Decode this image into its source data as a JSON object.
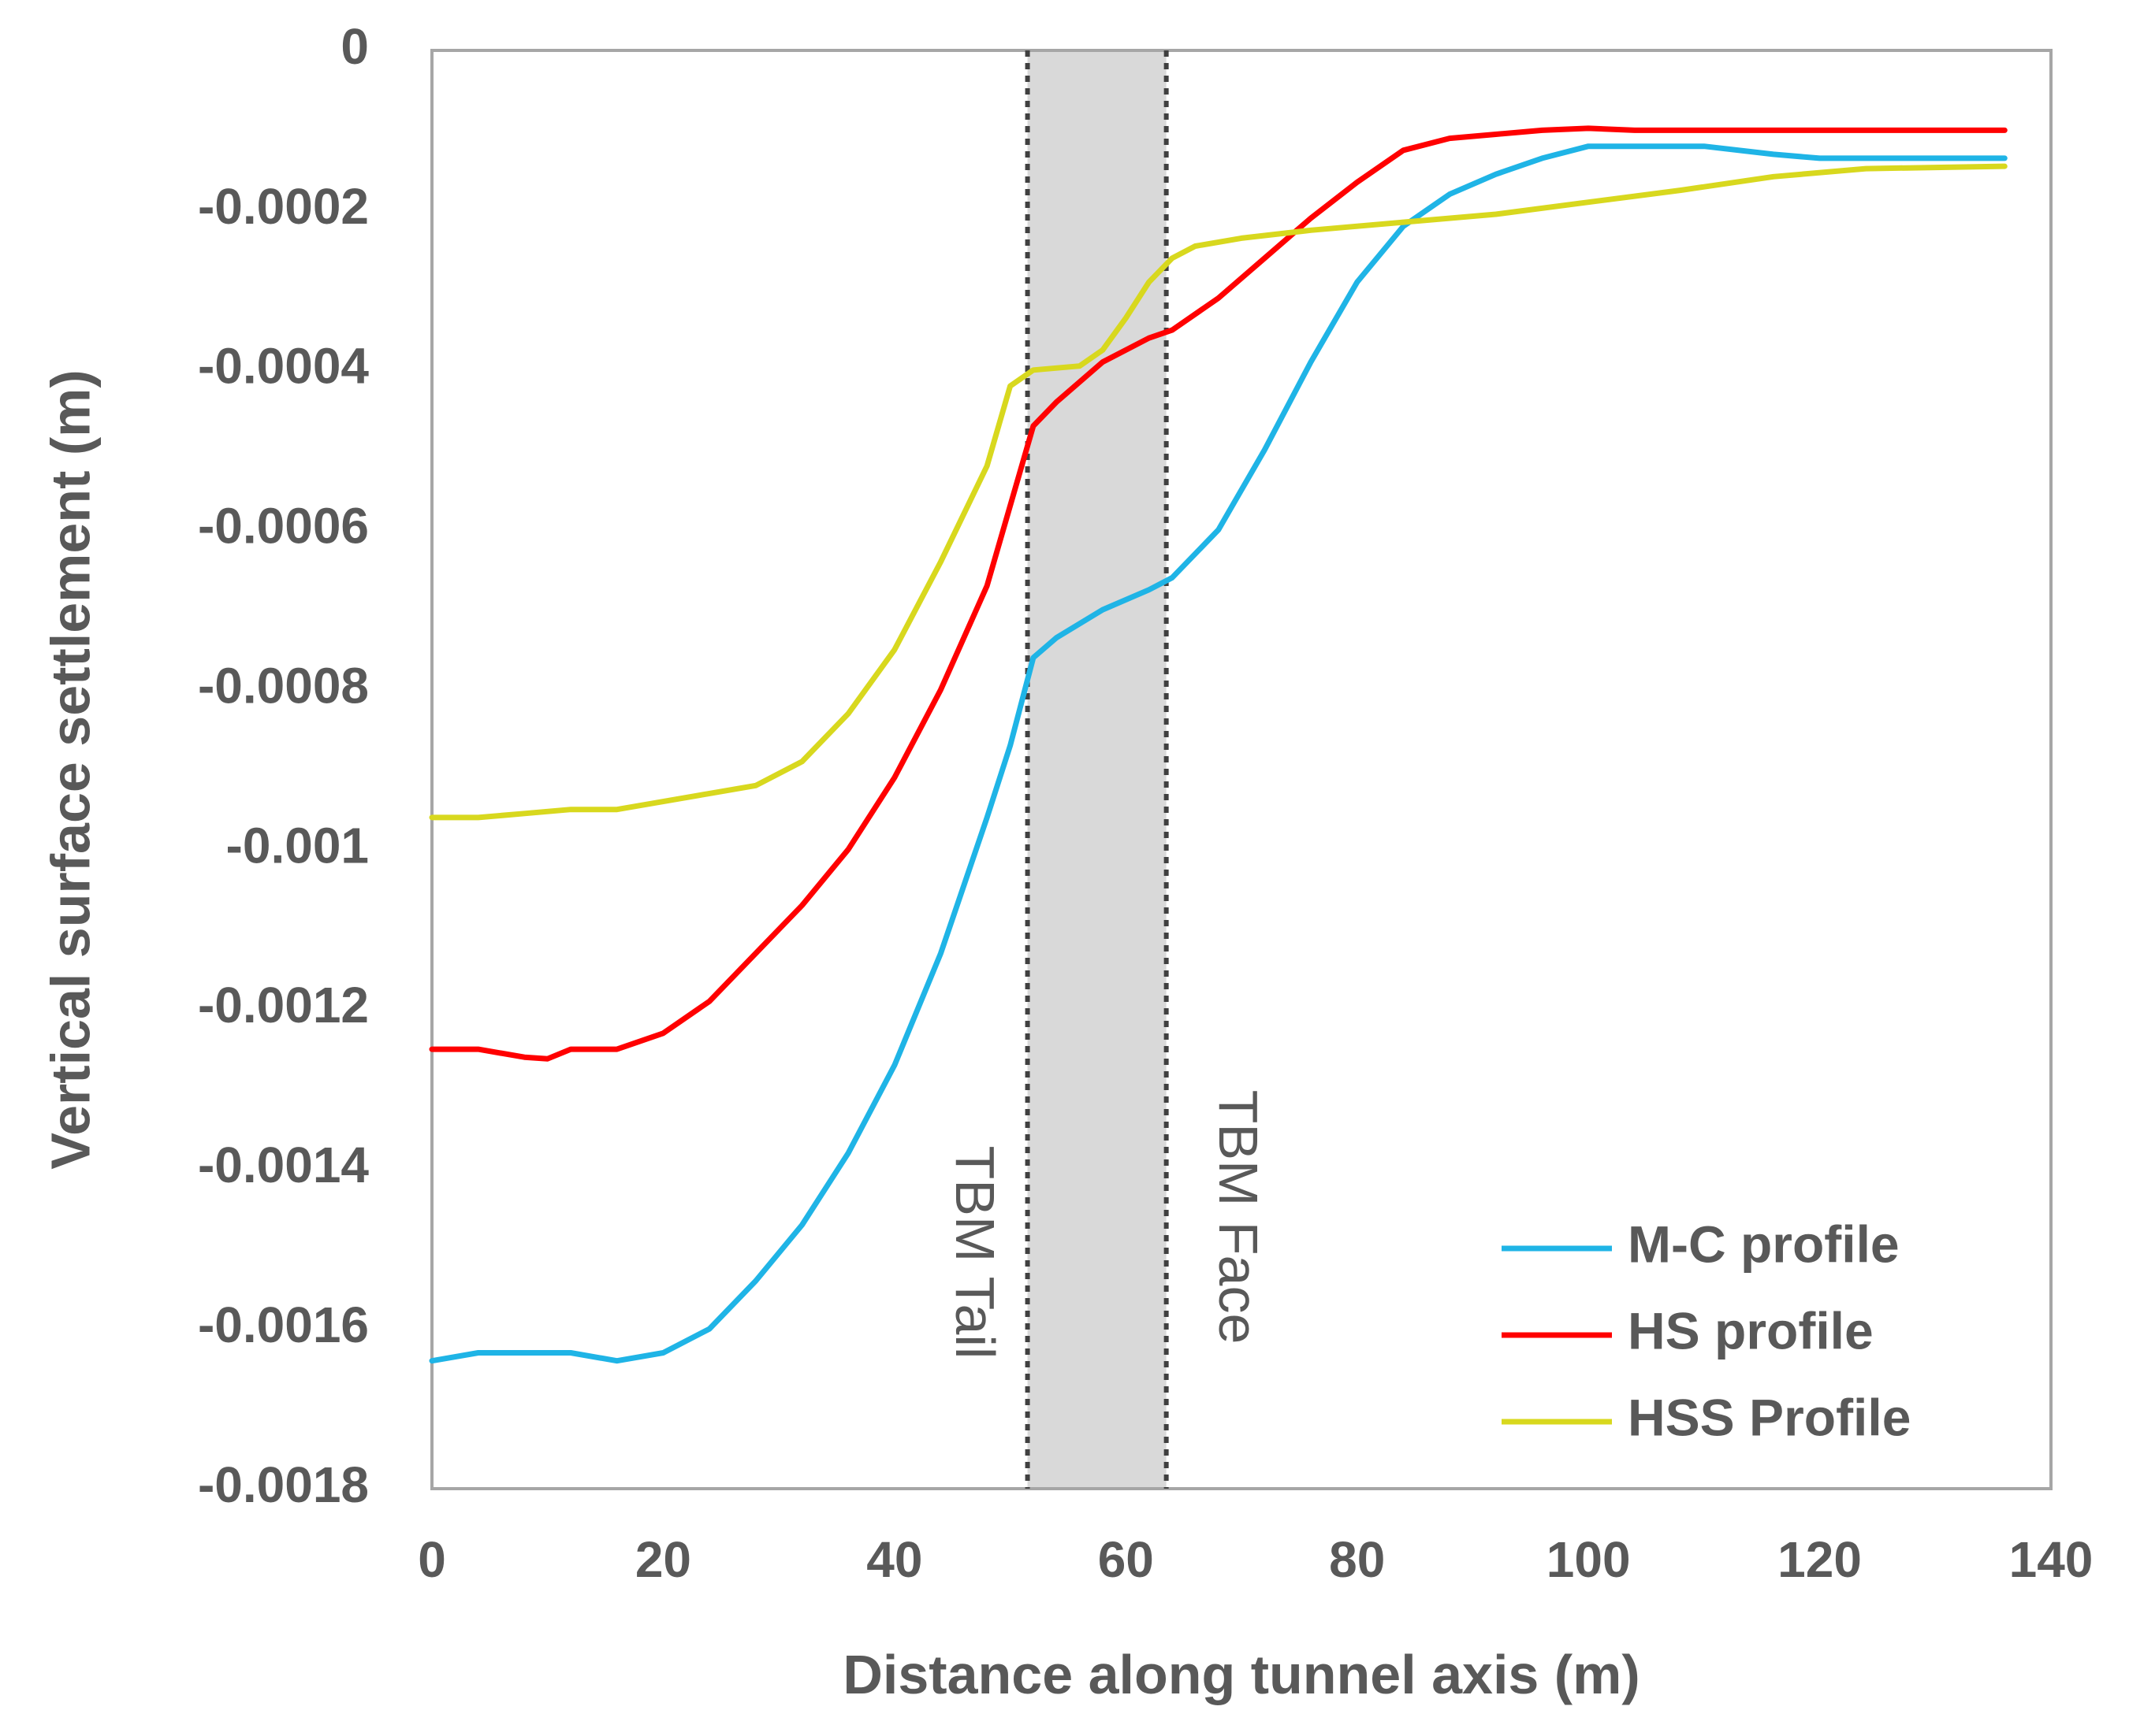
{
  "chart_data": {
    "type": "line",
    "title": "",
    "xlabel": "Distance along tunnel axis (m)",
    "ylabel": "Vertical surface settlement (m)",
    "xlim": [
      0,
      140
    ],
    "ylim": [
      -0.0018,
      0
    ],
    "x_ticks": [
      0,
      20,
      40,
      60,
      80,
      100,
      120,
      140
    ],
    "x_tick_labels": [
      "0",
      "20",
      "40",
      "60",
      "80",
      "100",
      "120",
      "140"
    ],
    "y_ticks": [
      0,
      -0.0002,
      -0.0004,
      -0.0006,
      -0.0008,
      -0.001,
      -0.0012,
      -0.0014,
      -0.0016,
      -0.0018
    ],
    "y_tick_labels": [
      "0",
      "-0.0002",
      "-0.0004",
      "-0.0006",
      "-0.0008",
      "-0.001",
      "-0.0012",
      "-0.0014",
      "-0.0016",
      "-0.0018"
    ],
    "grid": false,
    "legend_position": "bottom-right",
    "shaded_region": {
      "x": [
        51.5,
        63.5
      ],
      "color": "#d9d9d9"
    },
    "markers": [
      {
        "label": "TBM Tail",
        "x": 51.5
      },
      {
        "label": "TBM Face",
        "x": 63.5
      }
    ],
    "series": [
      {
        "name": "M-C profile",
        "color": "#1fb4e6",
        "points": [
          [
            0,
            -0.00164
          ],
          [
            4,
            -0.00163
          ],
          [
            8,
            -0.00163
          ],
          [
            12,
            -0.00163
          ],
          [
            16,
            -0.00164
          ],
          [
            20,
            -0.00163
          ],
          [
            24,
            -0.0016
          ],
          [
            28,
            -0.00154
          ],
          [
            32,
            -0.00147
          ],
          [
            36,
            -0.00138
          ],
          [
            40,
            -0.00127
          ],
          [
            44,
            -0.00113
          ],
          [
            48,
            -0.00096
          ],
          [
            50,
            -0.00087
          ],
          [
            52,
            -0.00076
          ],
          [
            54,
            -0.000735
          ],
          [
            58,
            -0.0007
          ],
          [
            62,
            -0.000675
          ],
          [
            64,
            -0.00066
          ],
          [
            68,
            -0.0006
          ],
          [
            72,
            -0.0005
          ],
          [
            76,
            -0.00039
          ],
          [
            80,
            -0.00029
          ],
          [
            84,
            -0.00022
          ],
          [
            88,
            -0.00018
          ],
          [
            92,
            -0.000155
          ],
          [
            96,
            -0.000135
          ],
          [
            100,
            -0.00012
          ],
          [
            104,
            -0.00012
          ],
          [
            110,
            -0.00012
          ],
          [
            116,
            -0.00013
          ],
          [
            120,
            -0.000135
          ],
          [
            128,
            -0.000135
          ],
          [
            136,
            -0.000135
          ]
        ]
      },
      {
        "name": "HS profile",
        "color": "#ff0000",
        "points": [
          [
            0,
            -0.00125
          ],
          [
            4,
            -0.00125
          ],
          [
            8,
            -0.00126
          ],
          [
            10,
            -0.001262
          ],
          [
            12,
            -0.00125
          ],
          [
            16,
            -0.00125
          ],
          [
            20,
            -0.00123
          ],
          [
            24,
            -0.00119
          ],
          [
            28,
            -0.00113
          ],
          [
            32,
            -0.00107
          ],
          [
            36,
            -0.001
          ],
          [
            40,
            -0.00091
          ],
          [
            44,
            -0.0008
          ],
          [
            48,
            -0.00067
          ],
          [
            52,
            -0.00047
          ],
          [
            54,
            -0.00044
          ],
          [
            58,
            -0.00039
          ],
          [
            62,
            -0.00036
          ],
          [
            64,
            -0.00035
          ],
          [
            68,
            -0.00031
          ],
          [
            72,
            -0.00026
          ],
          [
            76,
            -0.00021
          ],
          [
            80,
            -0.000165
          ],
          [
            84,
            -0.000125
          ],
          [
            88,
            -0.00011
          ],
          [
            92,
            -0.000105
          ],
          [
            96,
            -0.0001
          ],
          [
            100,
            -9.75e-05
          ],
          [
            104,
            -0.0001
          ],
          [
            110,
            -0.0001
          ],
          [
            120,
            -0.0001
          ],
          [
            136,
            -0.0001
          ]
        ]
      },
      {
        "name": "HSS Profile",
        "color": "#d8d81e",
        "points": [
          [
            0,
            -0.00096
          ],
          [
            4,
            -0.00096
          ],
          [
            8,
            -0.000955
          ],
          [
            12,
            -0.00095
          ],
          [
            16,
            -0.00095
          ],
          [
            20,
            -0.00094
          ],
          [
            24,
            -0.00093
          ],
          [
            28,
            -0.00092
          ],
          [
            32,
            -0.00089
          ],
          [
            36,
            -0.00083
          ],
          [
            40,
            -0.00075
          ],
          [
            44,
            -0.00064
          ],
          [
            48,
            -0.00052
          ],
          [
            50,
            -0.00042
          ],
          [
            52,
            -0.0004
          ],
          [
            56,
            -0.000395
          ],
          [
            58,
            -0.000375
          ],
          [
            60,
            -0.000335
          ],
          [
            62,
            -0.00029
          ],
          [
            64,
            -0.00026
          ],
          [
            66,
            -0.000245
          ],
          [
            70,
            -0.000235
          ],
          [
            76,
            -0.000225
          ],
          [
            84,
            -0.000215
          ],
          [
            92,
            -0.000205
          ],
          [
            100,
            -0.00019
          ],
          [
            108,
            -0.000175
          ],
          [
            116,
            -0.000158
          ],
          [
            124,
            -0.000148
          ],
          [
            136,
            -0.000145
          ]
        ]
      }
    ]
  }
}
